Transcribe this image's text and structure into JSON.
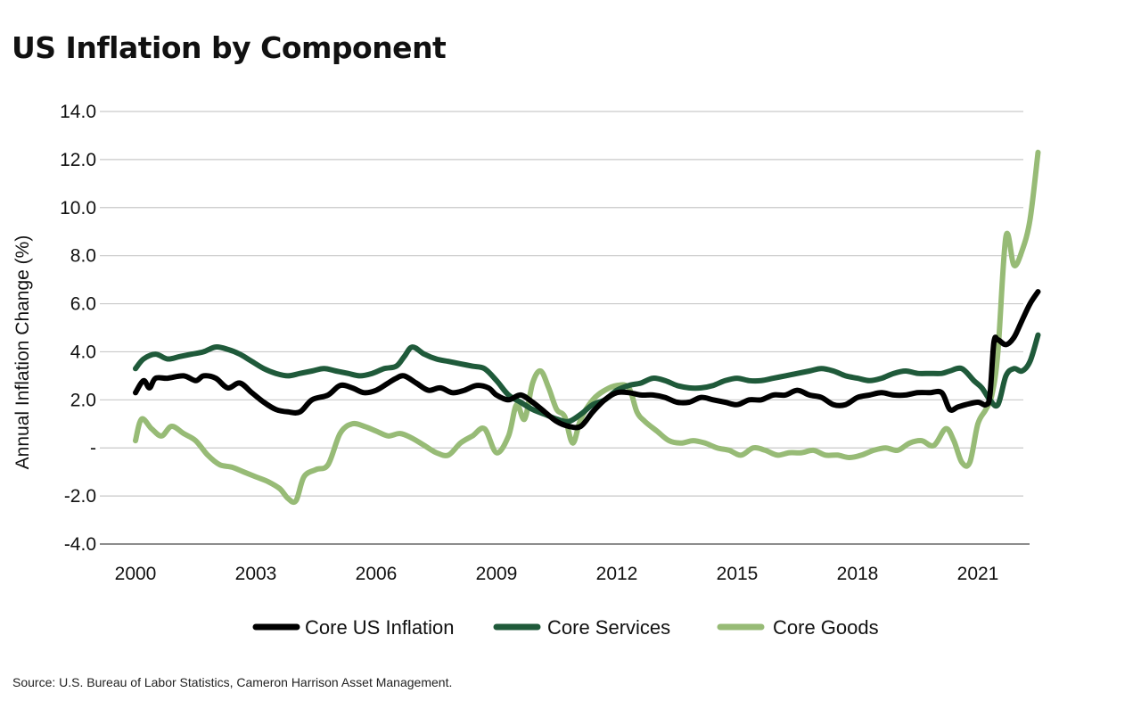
{
  "title": "US Inflation by Component",
  "source": "Source: U.S. Bureau of Labor Statistics, Cameron Harrison Asset Management.",
  "chart_data": {
    "type": "line",
    "title": "US Inflation by Component",
    "xlabel": "",
    "ylabel": "Annual Inflation Change (%)",
    "xlim": [
      2000,
      2022.6
    ],
    "ylim": [
      -4,
      14
    ],
    "yticks": [
      -4,
      -2,
      0,
      2,
      4,
      6,
      8,
      10,
      12,
      14
    ],
    "ytick_labels": [
      "-4.0",
      "-2.0",
      "-",
      "2.0",
      "4.0",
      "6.0",
      "8.0",
      "10.0",
      "12.0",
      "14.0"
    ],
    "xticks": [
      2000,
      2003,
      2006,
      2009,
      2012,
      2015,
      2018,
      2021
    ],
    "xtick_labels": [
      "2000",
      "2003",
      "2006",
      "2009",
      "2012",
      "2015",
      "2018",
      "2021"
    ],
    "grid": "horizontal",
    "legend": "bottom",
    "series": [
      {
        "name": "Core US Inflation",
        "color": "#000000",
        "x": [
          2000,
          2000.2,
          2000.35,
          2000.5,
          2000.8,
          2001.2,
          2001.5,
          2001.7,
          2002,
          2002.3,
          2002.6,
          2002.9,
          2003.2,
          2003.5,
          2003.8,
          2004.1,
          2004.4,
          2004.8,
          2005.1,
          2005.4,
          2005.7,
          2006,
          2006.3,
          2006.5,
          2006.7,
          2007,
          2007.3,
          2007.6,
          2007.9,
          2008.2,
          2008.5,
          2008.8,
          2009,
          2009.3,
          2009.6,
          2009.9,
          2010.2,
          2010.5,
          2010.8,
          2011.1,
          2011.4,
          2011.7,
          2012,
          2012.3,
          2012.6,
          2012.9,
          2013.2,
          2013.5,
          2013.8,
          2014.1,
          2014.4,
          2014.7,
          2015,
          2015.3,
          2015.6,
          2015.9,
          2016.2,
          2016.5,
          2016.8,
          2017.1,
          2017.4,
          2017.7,
          2018,
          2018.3,
          2018.6,
          2018.9,
          2019.2,
          2019.5,
          2019.8,
          2020.1,
          2020.3,
          2020.5,
          2020.7,
          2021,
          2021.2,
          2021.3,
          2021.4,
          2021.5,
          2021.7,
          2021.9,
          2022.1,
          2022.3,
          2022.5
        ],
        "values": [
          2.3,
          2.8,
          2.5,
          2.9,
          2.9,
          3.0,
          2.8,
          3.0,
          2.9,
          2.5,
          2.7,
          2.3,
          1.9,
          1.6,
          1.5,
          1.5,
          2.0,
          2.2,
          2.6,
          2.5,
          2.3,
          2.4,
          2.7,
          2.9,
          3.0,
          2.7,
          2.4,
          2.5,
          2.3,
          2.4,
          2.6,
          2.5,
          2.2,
          2.0,
          2.2,
          1.9,
          1.5,
          1.1,
          0.9,
          0.9,
          1.5,
          2.0,
          2.3,
          2.3,
          2.2,
          2.2,
          2.1,
          1.9,
          1.9,
          2.1,
          2.0,
          1.9,
          1.8,
          2.0,
          2.0,
          2.2,
          2.2,
          2.4,
          2.2,
          2.1,
          1.8,
          1.8,
          2.1,
          2.2,
          2.3,
          2.2,
          2.2,
          2.3,
          2.3,
          2.3,
          1.6,
          1.7,
          1.8,
          1.9,
          1.8,
          2.2,
          4.4,
          4.5,
          4.3,
          4.6,
          5.3,
          6.0,
          6.5
        ]
      },
      {
        "name": "Core Services",
        "color": "#1f5a3a",
        "x": [
          2000,
          2000.2,
          2000.5,
          2000.8,
          2001.1,
          2001.4,
          2001.7,
          2002,
          2002.3,
          2002.6,
          2002.9,
          2003.2,
          2003.5,
          2003.8,
          2004.1,
          2004.4,
          2004.7,
          2005,
          2005.3,
          2005.6,
          2005.9,
          2006.2,
          2006.5,
          2006.7,
          2006.9,
          2007.2,
          2007.5,
          2007.8,
          2008.1,
          2008.4,
          2008.7,
          2009,
          2009.3,
          2009.6,
          2009.9,
          2010.2,
          2010.5,
          2010.8,
          2011.1,
          2011.4,
          2011.7,
          2012,
          2012.3,
          2012.6,
          2012.9,
          2013.2,
          2013.5,
          2013.8,
          2014.1,
          2014.4,
          2014.7,
          2015,
          2015.3,
          2015.6,
          2015.9,
          2016.2,
          2016.5,
          2016.8,
          2017.1,
          2017.4,
          2017.7,
          2018,
          2018.3,
          2018.6,
          2018.9,
          2019.2,
          2019.5,
          2019.8,
          2020.1,
          2020.3,
          2020.6,
          2020.9,
          2021.1,
          2021.3,
          2021.5,
          2021.7,
          2021.9,
          2022.1,
          2022.3,
          2022.5
        ],
        "values": [
          3.3,
          3.7,
          3.9,
          3.7,
          3.8,
          3.9,
          4.0,
          4.2,
          4.1,
          3.9,
          3.6,
          3.3,
          3.1,
          3.0,
          3.1,
          3.2,
          3.3,
          3.2,
          3.1,
          3.0,
          3.1,
          3.3,
          3.4,
          3.8,
          4.2,
          3.9,
          3.7,
          3.6,
          3.5,
          3.4,
          3.3,
          2.8,
          2.2,
          1.9,
          1.6,
          1.4,
          1.2,
          1.1,
          1.4,
          1.8,
          2.0,
          2.4,
          2.6,
          2.7,
          2.9,
          2.8,
          2.6,
          2.5,
          2.5,
          2.6,
          2.8,
          2.9,
          2.8,
          2.8,
          2.9,
          3.0,
          3.1,
          3.2,
          3.3,
          3.2,
          3.0,
          2.9,
          2.8,
          2.9,
          3.1,
          3.2,
          3.1,
          3.1,
          3.1,
          3.2,
          3.3,
          2.8,
          2.5,
          2.0,
          1.8,
          3.0,
          3.3,
          3.2,
          3.6,
          4.7
        ]
      },
      {
        "name": "Core Goods",
        "color": "#97bb76",
        "x": [
          2000,
          2000.15,
          2000.4,
          2000.65,
          2000.9,
          2001.2,
          2001.5,
          2001.8,
          2002.1,
          2002.4,
          2002.7,
          2003,
          2003.3,
          2003.6,
          2003.8,
          2004,
          2004.2,
          2004.5,
          2004.8,
          2005.1,
          2005.4,
          2005.7,
          2006,
          2006.3,
          2006.6,
          2006.9,
          2007.2,
          2007.5,
          2007.8,
          2008.1,
          2008.4,
          2008.7,
          2009,
          2009.3,
          2009.5,
          2009.7,
          2009.9,
          2010.1,
          2010.3,
          2010.5,
          2010.7,
          2010.9,
          2011.1,
          2011.4,
          2011.7,
          2012,
          2012.3,
          2012.5,
          2012.7,
          2013,
          2013.3,
          2013.6,
          2013.9,
          2014.2,
          2014.5,
          2014.8,
          2015.1,
          2015.4,
          2015.7,
          2016,
          2016.3,
          2016.6,
          2016.9,
          2017.2,
          2017.5,
          2017.8,
          2018.1,
          2018.4,
          2018.7,
          2019,
          2019.3,
          2019.6,
          2019.9,
          2020.2,
          2020.4,
          2020.6,
          2020.8,
          2021,
          2021.2,
          2021.35,
          2021.5,
          2021.7,
          2021.9,
          2022.1,
          2022.3,
          2022.5
        ],
        "values": [
          0.3,
          1.2,
          0.8,
          0.5,
          0.9,
          0.6,
          0.3,
          -0.3,
          -0.7,
          -0.8,
          -1.0,
          -1.2,
          -1.4,
          -1.7,
          -2.1,
          -2.2,
          -1.2,
          -0.9,
          -0.7,
          0.6,
          1.0,
          0.9,
          0.7,
          0.5,
          0.6,
          0.4,
          0.1,
          -0.2,
          -0.3,
          0.2,
          0.5,
          0.8,
          -0.2,
          0.5,
          1.8,
          1.2,
          2.7,
          3.2,
          2.5,
          1.6,
          1.3,
          0.2,
          1.2,
          2.0,
          2.4,
          2.6,
          2.5,
          1.5,
          1.1,
          0.7,
          0.3,
          0.2,
          0.3,
          0.2,
          0.0,
          -0.1,
          -0.3,
          0.0,
          -0.1,
          -0.3,
          -0.2,
          -0.2,
          -0.1,
          -0.3,
          -0.3,
          -0.4,
          -0.3,
          -0.1,
          0.0,
          -0.1,
          0.2,
          0.3,
          0.1,
          0.8,
          0.3,
          -0.6,
          -0.6,
          1.0,
          1.6,
          2.2,
          4.0,
          8.8,
          7.6,
          8.2,
          9.5,
          12.3
        ]
      }
    ]
  }
}
